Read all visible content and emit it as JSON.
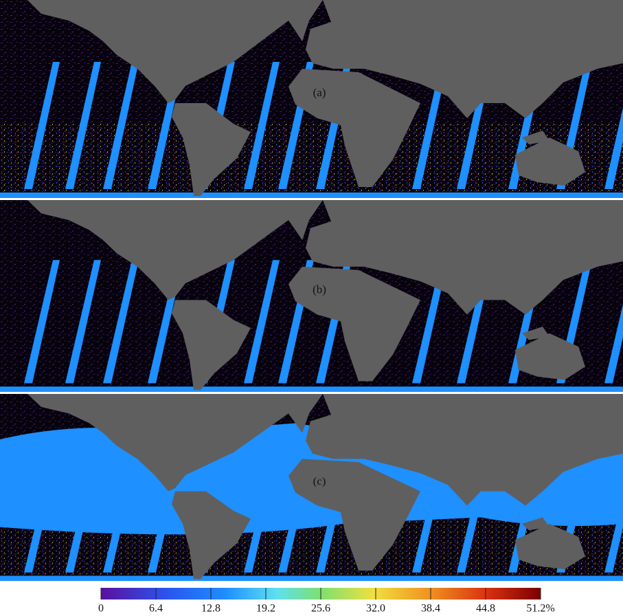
{
  "panels": [
    {
      "label": "(a)"
    },
    {
      "label": "(b)"
    },
    {
      "label": "(c)"
    }
  ],
  "colorbar": {
    "lim": [
      0,
      51.2
    ],
    "ticks": [
      0,
      6.4,
      12.8,
      19.2,
      25.6,
      {
        "value": 32,
        "label": "32.0"
      },
      38.4,
      44.8,
      {
        "value": 51.2,
        "label": "51.2%"
      }
    ]
  }
}
